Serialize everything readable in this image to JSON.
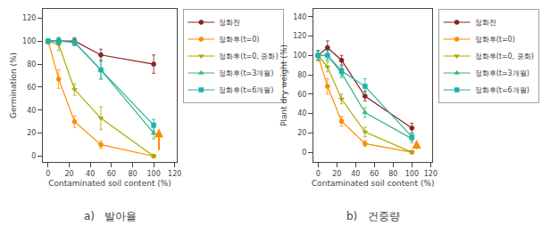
{
  "chart_data": [
    {
      "type": "line",
      "title": "a)   발아율",
      "xlabel": "Contaminated soil content (%)",
      "ylabel": "Germination (%)",
      "x": [
        0,
        10,
        25,
        50,
        100
      ],
      "xlim": [
        -5,
        122
      ],
      "xticks": [
        0,
        20,
        40,
        60,
        80,
        100,
        120
      ],
      "ylim": [
        -5,
        128
      ],
      "yticks": [
        0,
        20,
        40,
        60,
        80,
        100,
        120
      ],
      "grid": false,
      "legend": "upper right",
      "series": [
        {
          "name": "정화전",
          "color": "#8B2020",
          "marker": "circle",
          "values": [
            100,
            100,
            100,
            88,
            80
          ],
          "errors": [
            2,
            3,
            3,
            5,
            8
          ]
        },
        {
          "name": "정화후(t=0)",
          "color": "#FF8C00",
          "marker": "circle",
          "values": [
            100,
            67,
            30,
            10,
            0
          ],
          "errors": [
            2,
            8,
            5,
            3,
            1
          ]
        },
        {
          "name": "정화후(t=0, 중화)",
          "color": "#AAAA00",
          "marker": "triangle-down",
          "values": [
            100,
            97,
            58,
            33,
            0
          ],
          "errors": [
            2,
            5,
            5,
            10,
            1
          ]
        },
        {
          "name": "정화후(t=3개월)",
          "color": "#3CB371",
          "marker": "triangle-up",
          "values": [
            100,
            100,
            99,
            75,
            20
          ],
          "errors": [
            2,
            3,
            3,
            8,
            5
          ]
        },
        {
          "name": "정화후(t=6개월)",
          "color": "#20B2AA",
          "marker": "square",
          "values": [
            100,
            100,
            99,
            75,
            27
          ],
          "errors": [
            2,
            3,
            3,
            8,
            5
          ]
        }
      ],
      "arrows": [
        {
          "x": 105,
          "y_start": 4,
          "y_end": 24,
          "color": "#FF8C00"
        }
      ]
    },
    {
      "type": "line",
      "title": "b)   건중량",
      "xlabel": "Contaminated soil content (%)",
      "ylabel": "Plant dry weight (%)",
      "x": [
        0,
        10,
        25,
        50,
        100
      ],
      "xlim": [
        -5,
        122
      ],
      "xticks": [
        0,
        20,
        40,
        60,
        80,
        100,
        120
      ],
      "ylim": [
        -10,
        148
      ],
      "yticks": [
        0,
        20,
        40,
        60,
        80,
        100,
        120,
        140
      ],
      "grid": false,
      "legend": "upper right",
      "series": [
        {
          "name": "정화전",
          "color": "#8B2020",
          "marker": "circle",
          "values": [
            100,
            108,
            95,
            58,
            25
          ],
          "errors": [
            5,
            7,
            5,
            5,
            5
          ]
        },
        {
          "name": "정화후(t=0)",
          "color": "#FF8C00",
          "marker": "circle",
          "values": [
            100,
            68,
            32,
            9,
            0
          ],
          "errors": [
            5,
            8,
            5,
            3,
            1
          ]
        },
        {
          "name": "정화후(t=0, 중화)",
          "color": "#AAAA00",
          "marker": "triangle-down",
          "values": [
            100,
            88,
            55,
            21,
            0
          ],
          "errors": [
            5,
            5,
            5,
            5,
            1
          ]
        },
        {
          "name": "정화후(t=3개월)",
          "color": "#3CB371",
          "marker": "triangle-up",
          "values": [
            100,
            100,
            82,
            41,
            14
          ],
          "errors": [
            5,
            5,
            5,
            5,
            4
          ]
        },
        {
          "name": "정화후(t=6개월)",
          "color": "#20B2AA",
          "marker": "square",
          "values": [
            100,
            100,
            84,
            68,
            16
          ],
          "errors": [
            5,
            5,
            5,
            8,
            4
          ]
        }
      ],
      "arrows": [
        {
          "x": 105,
          "y_start": 2,
          "y_end": 13,
          "color": "#FF8C00"
        }
      ]
    }
  ]
}
